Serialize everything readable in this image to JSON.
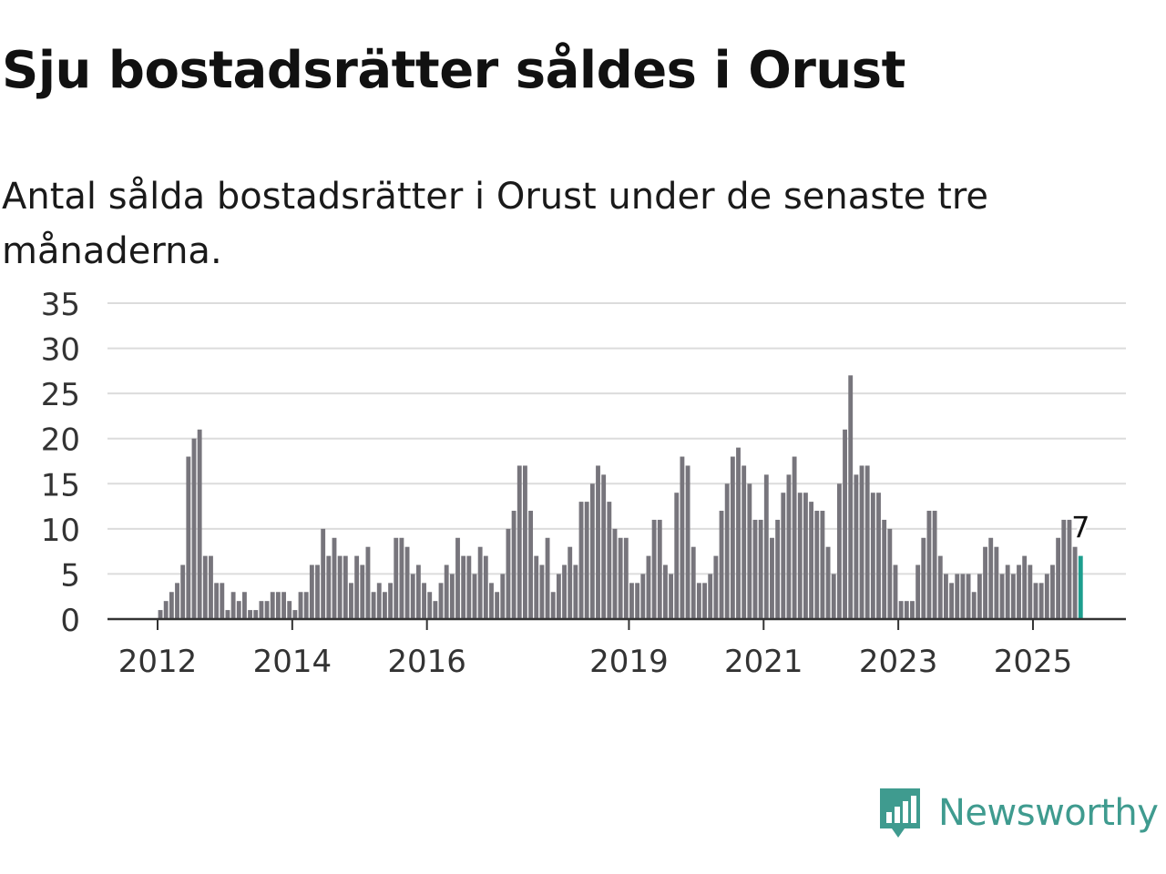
{
  "header": {
    "title": "Sju bostadsrätter såldes i Orust",
    "subtitle": "Antal sålda bostadsrätter i Orust under de senaste tre månaderna."
  },
  "brand": {
    "name": "Newsworthy",
    "color": "#3f9b8f"
  },
  "chart_data": {
    "type": "bar",
    "title": "Sju bostadsrätter såldes i Orust",
    "xlabel": "",
    "ylabel": "",
    "ylim": [
      0,
      35
    ],
    "yticks": [
      "0",
      "5",
      "10",
      "15",
      "20",
      "25",
      "30",
      "35"
    ],
    "xticks": [
      "2012",
      "2014",
      "2016",
      "2019",
      "2021",
      "2023",
      "2025"
    ],
    "grid": true,
    "bar_color": "#77757c",
    "highlight_color": "#1d9e8e",
    "highlight_label": "7",
    "series": [
      {
        "name": "Antal sålda bostadsrätter",
        "start": "2012-01",
        "values": [
          1,
          2,
          3,
          4,
          6,
          18,
          20,
          21,
          7,
          7,
          4,
          4,
          1,
          3,
          2,
          3,
          1,
          1,
          2,
          2,
          3,
          3,
          3,
          2,
          1,
          3,
          3,
          6,
          6,
          10,
          7,
          9,
          7,
          7,
          4,
          7,
          6,
          8,
          3,
          4,
          3,
          4,
          9,
          9,
          8,
          5,
          6,
          4,
          3,
          2,
          4,
          6,
          5,
          9,
          7,
          7,
          5,
          8,
          7,
          4,
          3,
          5,
          10,
          12,
          17,
          17,
          12,
          7,
          6,
          9,
          3,
          5,
          6,
          8,
          6,
          13,
          13,
          15,
          17,
          16,
          13,
          10,
          9,
          9,
          4,
          4,
          5,
          7,
          11,
          11,
          6,
          5,
          14,
          18,
          17,
          8,
          4,
          4,
          5,
          7,
          12,
          15,
          18,
          19,
          17,
          15,
          11,
          11,
          16,
          9,
          11,
          14,
          16,
          18,
          14,
          14,
          13,
          12,
          12,
          8,
          5,
          15,
          21,
          27,
          16,
          17,
          17,
          14,
          14,
          11,
          10,
          6,
          2,
          2,
          2,
          6,
          9,
          12,
          12,
          7,
          5,
          4,
          5,
          5,
          5,
          3,
          5,
          8,
          9,
          8,
          5,
          6,
          5,
          6,
          7,
          6,
          4,
          4,
          5,
          6,
          9,
          11,
          11,
          8,
          7
        ]
      }
    ]
  }
}
